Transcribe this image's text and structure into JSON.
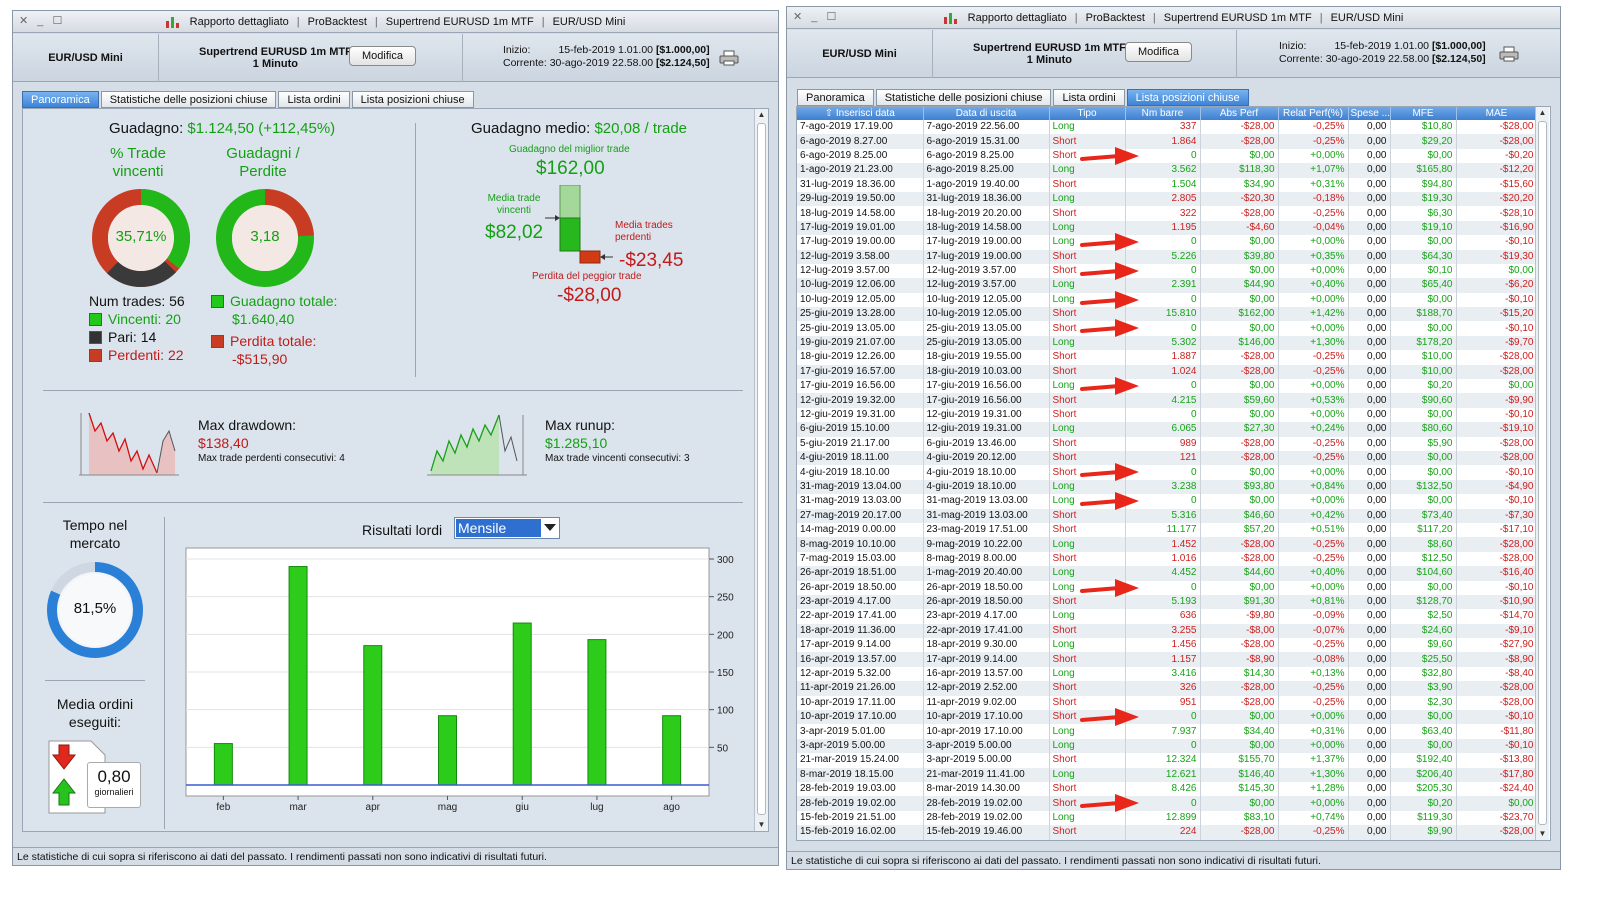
{
  "window_title": {
    "items": [
      "Rapporto dettagliato",
      "ProBacktest",
      "Supertrend EURUSD 1m MTF",
      "EUR/USD Mini"
    ],
    "sep": "|"
  },
  "header": {
    "instrument": "EUR/USD Mini",
    "strategy": "Supertrend EURUSD 1m MTF",
    "timeframe": "1 Minuto",
    "edit_label": "Modifica",
    "start_label": "Inizio:",
    "start_value": "15-feb-2019 1.01.00",
    "start_capital": "[$1.000,00]",
    "current_label": "Corrente:",
    "current_value": "30-ago-2019 22.58.00",
    "current_capital": "[$2.124,50]"
  },
  "tabs": [
    "Panoramica",
    "Statistiche delle posizioni chiuse",
    "Lista ordini",
    "Lista posizioni chiuse"
  ],
  "overview": {
    "gain_label": "Guadagno:",
    "gain_value": "$1.124,50 (+112,45%)",
    "pct_winning_label": "% Trade vincenti",
    "pct_winning_value": "35,71%",
    "pct_winning": 35.71,
    "gain_loss_label": "Guadagni / Perdite",
    "gain_loss_value": "3,18",
    "num_trades_label": "Num trades:",
    "num_trades": "56",
    "winning_label": "Vincenti:",
    "winning": "20",
    "even_label": "Pari:",
    "even": "14",
    "losing_label": "Perdenti:",
    "losing": "22",
    "total_gain_label": "Guadagno totale:",
    "total_gain": "$1.640,40",
    "total_loss_label": "Perdita totale:",
    "total_loss": "-$515,90",
    "avg_gain_label": "Guadagno medio:",
    "avg_gain": "$20,08 / trade",
    "best_trade_label": "Guadagno del miglior trade",
    "best_trade": "$162,00",
    "avg_winning_label": "Media trade vincenti",
    "avg_winning": "$82,02",
    "avg_losing_label": "Media trades perdenti",
    "avg_losing": "-$23,45",
    "worst_trade_label": "Perdita del peggior trade",
    "worst_trade": "-$28,00",
    "max_drawdown_label": "Max drawdown:",
    "max_drawdown": "$138,40",
    "max_consec_losing_label": "Max trade perdenti consecutivi:",
    "max_consec_losing": "4",
    "max_runup_label": "Max runup:",
    "max_runup": "$1.285,10",
    "max_consec_winning_label": "Max trade vincenti consecutivi:",
    "max_consec_winning": "3",
    "time_in_market_label": "Tempo nel mercato",
    "time_in_market": "81,5%",
    "time_in_market_pct": 81.5,
    "avg_orders_label": "Media ordini eseguiti:",
    "avg_orders": "0,80",
    "avg_orders_unit": "giornalieri",
    "results_label": "Risultati lordi",
    "results_period": "Mensile"
  },
  "chart_data": {
    "type": "bar",
    "title": "Risultati lordi",
    "categories": [
      "feb",
      "mar",
      "apr",
      "mag",
      "giu",
      "lug",
      "ago"
    ],
    "values": [
      55,
      290,
      185,
      92,
      215,
      193,
      92
    ],
    "ylim": [
      0,
      300
    ],
    "yticks": [
      50,
      100,
      150,
      200,
      250,
      300
    ],
    "color": "#2ecc1a"
  },
  "disclaimer": "Le statistiche di cui sopra si riferiscono ai dati del passato. I rendimenti passati non sono indicativi di risultati futuri.",
  "positions": {
    "columns": [
      "Inserisci data",
      "Data di uscita",
      "Tipo",
      "Nm barre",
      "Abs Perf",
      "Relat Perf(%)",
      "Spese ...",
      "MFE",
      "MAE"
    ],
    "rows": [
      [
        "7-ago-2019 17.19.00",
        "7-ago-2019 22.56.00",
        "Long",
        "337",
        "-$28,00",
        "-0,25%",
        "0,00",
        "$10,80",
        "-$28,00"
      ],
      [
        "6-ago-2019 8.27.00",
        "6-ago-2019 15.31.00",
        "Short",
        "1.864",
        "-$28,00",
        "-0,25%",
        "0,00",
        "$29,20",
        "-$28,00"
      ],
      [
        "6-ago-2019 8.25.00",
        "6-ago-2019 8.25.00",
        "Short",
        "0",
        "$0,00",
        "+0,00%",
        "0,00",
        "$0,00",
        "-$0,20"
      ],
      [
        "1-ago-2019 21.23.00",
        "6-ago-2019 8.25.00",
        "Long",
        "3.562",
        "$118,30",
        "+1,07%",
        "0,00",
        "$165,80",
        "-$12,20"
      ],
      [
        "31-lug-2019 18.36.00",
        "1-ago-2019 19.40.00",
        "Short",
        "1.504",
        "$34,90",
        "+0,31%",
        "0,00",
        "$94,80",
        "-$15,60"
      ],
      [
        "29-lug-2019 19.50.00",
        "31-lug-2019 18.36.00",
        "Long",
        "2.805",
        "-$20,30",
        "-0,18%",
        "0,00",
        "$19,30",
        "-$20,20"
      ],
      [
        "18-lug-2019 14.58.00",
        "18-lug-2019 20.20.00",
        "Short",
        "322",
        "-$28,00",
        "-0,25%",
        "0,00",
        "$6,30",
        "-$28,10"
      ],
      [
        "17-lug-2019 19.01.00",
        "18-lug-2019 14.58.00",
        "Long",
        "1.195",
        "-$4,60",
        "-0,04%",
        "0,00",
        "$19,10",
        "-$16,90"
      ],
      [
        "17-lug-2019 19.00.00",
        "17-lug-2019 19.00.00",
        "Long",
        "0",
        "$0,00",
        "+0,00%",
        "0,00",
        "$0,00",
        "-$0,10"
      ],
      [
        "12-lug-2019 3.58.00",
        "17-lug-2019 19.00.00",
        "Short",
        "5.226",
        "$39,80",
        "+0,35%",
        "0,00",
        "$64,30",
        "-$19,30"
      ],
      [
        "12-lug-2019 3.57.00",
        "12-lug-2019 3.57.00",
        "Short",
        "0",
        "$0,00",
        "+0,00%",
        "0,00",
        "$0,10",
        "$0,00"
      ],
      [
        "10-lug-2019 12.06.00",
        "12-lug-2019 3.57.00",
        "Long",
        "2.391",
        "$44,90",
        "+0,40%",
        "0,00",
        "$65,40",
        "-$6,20"
      ],
      [
        "10-lug-2019 12.05.00",
        "10-lug-2019 12.05.00",
        "Long",
        "0",
        "$0,00",
        "+0,00%",
        "0,00",
        "$0,00",
        "-$0,10"
      ],
      [
        "25-giu-2019 13.28.00",
        "10-lug-2019 12.05.00",
        "Short",
        "15.810",
        "$162,00",
        "+1,42%",
        "0,00",
        "$188,70",
        "-$15,20"
      ],
      [
        "25-giu-2019 13.05.00",
        "25-giu-2019 13.05.00",
        "Short",
        "0",
        "$0,00",
        "+0,00%",
        "0,00",
        "$0,00",
        "-$0,10"
      ],
      [
        "19-giu-2019 21.07.00",
        "25-giu-2019 13.05.00",
        "Long",
        "5.302",
        "$146,00",
        "+1,30%",
        "0,00",
        "$178,20",
        "-$9,70"
      ],
      [
        "18-giu-2019 12.26.00",
        "18-giu-2019 19.55.00",
        "Short",
        "1.887",
        "-$28,00",
        "-0,25%",
        "0,00",
        "$10,00",
        "-$28,00"
      ],
      [
        "17-giu-2019 16.57.00",
        "18-giu-2019 10.03.00",
        "Short",
        "1.024",
        "-$28,00",
        "-0,25%",
        "0,00",
        "$10,00",
        "-$28,00"
      ],
      [
        "17-giu-2019 16.56.00",
        "17-giu-2019 16.56.00",
        "Long",
        "0",
        "$0,00",
        "+0,00%",
        "0,00",
        "$0,20",
        "$0,00"
      ],
      [
        "12-giu-2019 19.32.00",
        "17-giu-2019 16.56.00",
        "Short",
        "4.215",
        "$59,60",
        "+0,53%",
        "0,00",
        "$90,60",
        "-$9,90"
      ],
      [
        "12-giu-2019 19.31.00",
        "12-giu-2019 19.31.00",
        "Short",
        "0",
        "$0,00",
        "+0,00%",
        "0,00",
        "$0,00",
        "-$0,10"
      ],
      [
        "6-giu-2019 15.10.00",
        "12-giu-2019 19.31.00",
        "Long",
        "6.065",
        "$27,30",
        "+0,24%",
        "0,00",
        "$80,60",
        "-$19,10"
      ],
      [
        "5-giu-2019 21.17.00",
        "6-giu-2019 13.46.00",
        "Short",
        "989",
        "-$28,00",
        "-0,25%",
        "0,00",
        "$5,90",
        "-$28,00"
      ],
      [
        "4-giu-2019 18.11.00",
        "4-giu-2019 20.12.00",
        "Short",
        "121",
        "-$28,00",
        "-0,25%",
        "0,00",
        "$0,00",
        "-$28,00"
      ],
      [
        "4-giu-2019 18.10.00",
        "4-giu-2019 18.10.00",
        "Short",
        "0",
        "$0,00",
        "+0,00%",
        "0,00",
        "$0,00",
        "-$0,10"
      ],
      [
        "31-mag-2019 13.04.00",
        "4-giu-2019 18.10.00",
        "Long",
        "3.238",
        "$93,80",
        "+0,84%",
        "0,00",
        "$132,50",
        "-$4,90"
      ],
      [
        "31-mag-2019 13.03.00",
        "31-mag-2019 13.03.00",
        "Long",
        "0",
        "$0,00",
        "+0,00%",
        "0,00",
        "$0,00",
        "-$0,10"
      ],
      [
        "27-mag-2019 20.17.00",
        "31-mag-2019 13.03.00",
        "Short",
        "5.316",
        "$46,60",
        "+0,42%",
        "0,00",
        "$73,40",
        "-$7,30"
      ],
      [
        "14-mag-2019 0.00.00",
        "23-mag-2019 17.51.00",
        "Short",
        "11.177",
        "$57,20",
        "+0,51%",
        "0,00",
        "$117,20",
        "-$17,10"
      ],
      [
        "8-mag-2019 10.10.00",
        "9-mag-2019 10.22.00",
        "Long",
        "1.452",
        "-$28,00",
        "-0,25%",
        "0,00",
        "$8,60",
        "-$28,00"
      ],
      [
        "7-mag-2019 15.03.00",
        "8-mag-2019 8.00.00",
        "Short",
        "1.016",
        "-$28,00",
        "-0,25%",
        "0,00",
        "$12,50",
        "-$28,00"
      ],
      [
        "26-apr-2019 18.51.00",
        "1-mag-2019 20.40.00",
        "Long",
        "4.452",
        "$44,60",
        "+0,40%",
        "0,00",
        "$104,60",
        "-$16,40"
      ],
      [
        "26-apr-2019 18.50.00",
        "26-apr-2019 18.50.00",
        "Long",
        "0",
        "$0,00",
        "+0,00%",
        "0,00",
        "$0,00",
        "-$0,10"
      ],
      [
        "23-apr-2019 4.17.00",
        "26-apr-2019 18.50.00",
        "Short",
        "5.193",
        "$91,30",
        "+0,81%",
        "0,00",
        "$128,70",
        "-$10,90"
      ],
      [
        "22-apr-2019 17.41.00",
        "23-apr-2019 4.17.00",
        "Long",
        "636",
        "-$9,80",
        "-0,09%",
        "0,00",
        "$2,50",
        "-$14,70"
      ],
      [
        "18-apr-2019 11.36.00",
        "22-apr-2019 17.41.00",
        "Short",
        "3.255",
        "-$8,00",
        "-0,07%",
        "0,00",
        "$24,60",
        "-$9,10"
      ],
      [
        "17-apr-2019 9.14.00",
        "18-apr-2019 9.30.00",
        "Long",
        "1.456",
        "-$28,00",
        "-0,25%",
        "0,00",
        "$9,60",
        "-$27,90"
      ],
      [
        "16-apr-2019 13.57.00",
        "17-apr-2019 9.14.00",
        "Short",
        "1.157",
        "-$8,90",
        "-0,08%",
        "0,00",
        "$25,50",
        "-$8,90"
      ],
      [
        "12-apr-2019 5.32.00",
        "16-apr-2019 13.57.00",
        "Long",
        "3.416",
        "$14,30",
        "+0,13%",
        "0,00",
        "$32,80",
        "-$8,40"
      ],
      [
        "11-apr-2019 21.26.00",
        "12-apr-2019 2.52.00",
        "Short",
        "326",
        "-$28,00",
        "-0,25%",
        "0,00",
        "$3,90",
        "-$28,00"
      ],
      [
        "10-apr-2019 17.11.00",
        "11-apr-2019 9.02.00",
        "Short",
        "951",
        "-$28,00",
        "-0,25%",
        "0,00",
        "$2,30",
        "-$28,00"
      ],
      [
        "10-apr-2019 17.10.00",
        "10-apr-2019 17.10.00",
        "Short",
        "0",
        "$0,00",
        "+0,00%",
        "0,00",
        "$0,00",
        "-$0,10"
      ],
      [
        "3-apr-2019 5.01.00",
        "10-apr-2019 17.10.00",
        "Long",
        "7.937",
        "$34,40",
        "+0,31%",
        "0,00",
        "$63,40",
        "-$11,80"
      ],
      [
        "3-apr-2019 5.00.00",
        "3-apr-2019 5.00.00",
        "Long",
        "0",
        "$0,00",
        "+0,00%",
        "0,00",
        "$0,00",
        "-$0,10"
      ],
      [
        "21-mar-2019 15.24.00",
        "3-apr-2019 5.00.00",
        "Short",
        "12.324",
        "$155,70",
        "+1,37%",
        "0,00",
        "$192,40",
        "-$13,80"
      ],
      [
        "8-mar-2019 18.15.00",
        "21-mar-2019 11.41.00",
        "Long",
        "12.621",
        "$146,40",
        "+1,30%",
        "0,00",
        "$206,40",
        "-$17,80"
      ],
      [
        "28-feb-2019 19.03.00",
        "8-mar-2019 14.30.00",
        "Short",
        "8.426",
        "$145,30",
        "+1,28%",
        "0,00",
        "$205,30",
        "-$24,40"
      ],
      [
        "28-feb-2019 19.02.00",
        "28-feb-2019 19.02.00",
        "Short",
        "0",
        "$0,00",
        "+0,00%",
        "0,00",
        "$0,20",
        "$0,00"
      ],
      [
        "15-feb-2019 21.51.00",
        "28-feb-2019 19.02.00",
        "Long",
        "12.899",
        "$83,10",
        "+0,74%",
        "0,00",
        "$119,30",
        "-$23,70"
      ],
      [
        "15-feb-2019 16.02.00",
        "15-feb-2019 19.46.00",
        "Short",
        "224",
        "-$28,00",
        "-0,25%",
        "0,00",
        "$9,90",
        "-$28,00"
      ]
    ],
    "arrow_rows": [
      2,
      8,
      10,
      12,
      14,
      18,
      24,
      26,
      32,
      41,
      47
    ]
  }
}
